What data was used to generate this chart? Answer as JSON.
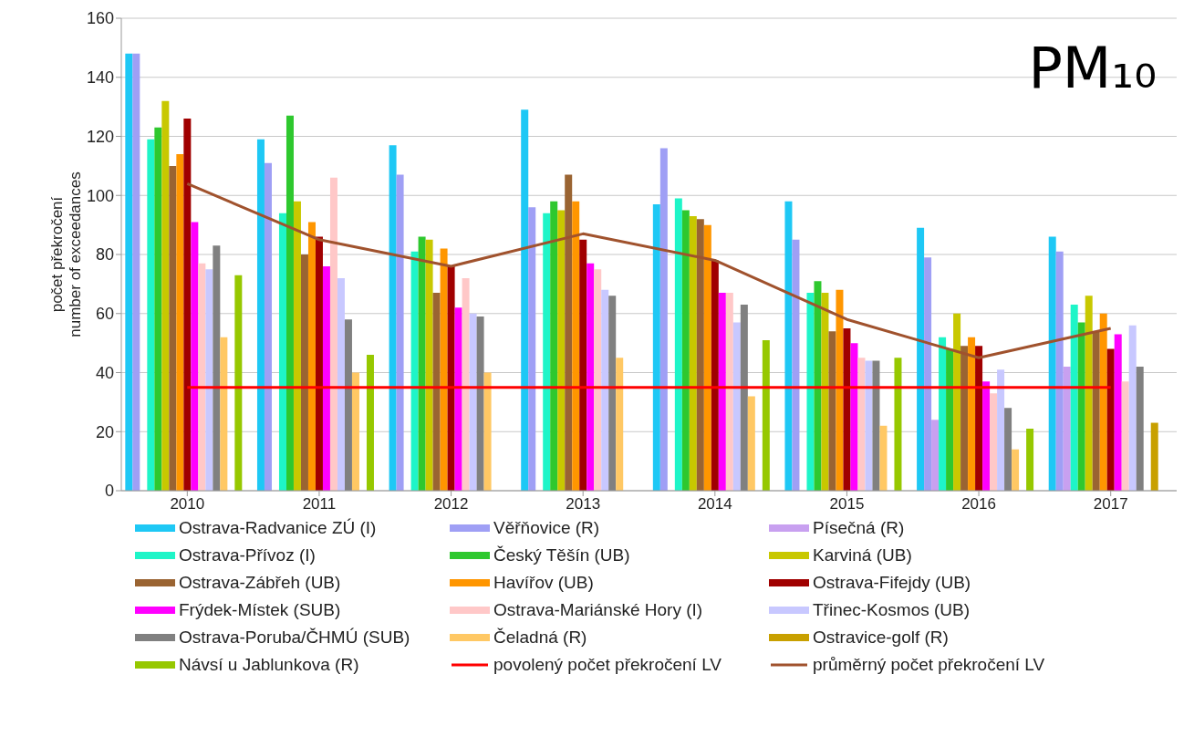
{
  "chart_data": {
    "type": "bar",
    "title": "PM₁₀",
    "ylabel": "počet překročení\nnumber of exceedances",
    "categories": [
      "2010",
      "2011",
      "2012",
      "2013",
      "2014",
      "2015",
      "2016",
      "2017"
    ],
    "ylim": [
      0,
      160
    ],
    "yticks": [
      0,
      20,
      40,
      60,
      80,
      100,
      120,
      140,
      160
    ],
    "grid": "y",
    "legend": "bottom",
    "series": [
      {
        "name": "Ostrava-Radvanice ZÚ (I)",
        "color": "#1ec8f5",
        "values": [
          148,
          119,
          117,
          129,
          97,
          98,
          89,
          86
        ]
      },
      {
        "name": "Věřňovice (R)",
        "color": "#9f9ff5",
        "values": [
          148,
          111,
          107,
          96,
          116,
          85,
          79,
          81
        ]
      },
      {
        "name": "Písečná (R)",
        "color": "#c8a0f0",
        "values": [
          null,
          null,
          null,
          null,
          null,
          null,
          24,
          42
        ]
      },
      {
        "name": "Ostrava-Přívoz (I)",
        "color": "#1ef5c8",
        "values": [
          119,
          94,
          81,
          94,
          99,
          67,
          52,
          63
        ]
      },
      {
        "name": "Český Těšín (UB)",
        "color": "#2ec82e",
        "values": [
          123,
          127,
          86,
          98,
          95,
          71,
          48,
          57
        ]
      },
      {
        "name": "Karviná (UB)",
        "color": "#c8c800",
        "values": [
          132,
          98,
          85,
          95,
          93,
          67,
          60,
          66
        ]
      },
      {
        "name": "Ostrava-Zábřeh (UB)",
        "color": "#9a6432",
        "values": [
          110,
          80,
          67,
          107,
          92,
          54,
          49,
          54
        ]
      },
      {
        "name": "Havířov (UB)",
        "color": "#ff9600",
        "values": [
          114,
          91,
          82,
          98,
          90,
          68,
          52,
          60
        ]
      },
      {
        "name": "Ostrava-Fifejdy (UB)",
        "color": "#a00000",
        "values": [
          126,
          86,
          76,
          85,
          78,
          55,
          49,
          48
        ]
      },
      {
        "name": "Frýdek-Místek (SUB)",
        "color": "#ff00ff",
        "values": [
          91,
          76,
          62,
          77,
          67,
          50,
          37,
          53
        ]
      },
      {
        "name": "Ostrava-Mariánské Hory (I)",
        "color": "#ffc8c8",
        "values": [
          77,
          106,
          72,
          75,
          67,
          45,
          33,
          37
        ]
      },
      {
        "name": "Třinec-Kosmos (UB)",
        "color": "#c8c8ff",
        "values": [
          75,
          72,
          60,
          68,
          57,
          44,
          41,
          56
        ]
      },
      {
        "name": "Ostrava-Poruba/ČHMÚ (SUB)",
        "color": "#808080",
        "values": [
          83,
          58,
          59,
          66,
          63,
          44,
          28,
          42
        ]
      },
      {
        "name": "Čeladná (R)",
        "color": "#ffc864",
        "values": [
          52,
          40,
          40,
          45,
          32,
          22,
          14,
          null
        ]
      },
      {
        "name": "Ostravice-golf (R)",
        "color": "#c8a000",
        "values": [
          null,
          null,
          null,
          null,
          null,
          null,
          null,
          23
        ]
      },
      {
        "name": "Návsí u Jablunkova (R)",
        "color": "#96c800",
        "values": [
          73,
          46,
          null,
          null,
          51,
          45,
          21,
          null
        ]
      },
      {
        "name": "povolený počet překročení LV",
        "type": "line",
        "color": "#ff0000",
        "values": [
          35,
          35,
          35,
          35,
          35,
          35,
          35,
          35
        ]
      },
      {
        "name": "průměrný počet překročení LV",
        "type": "line",
        "color": "#a0522d",
        "values": [
          104,
          85,
          76,
          87,
          78,
          58,
          45,
          55
        ]
      }
    ]
  }
}
